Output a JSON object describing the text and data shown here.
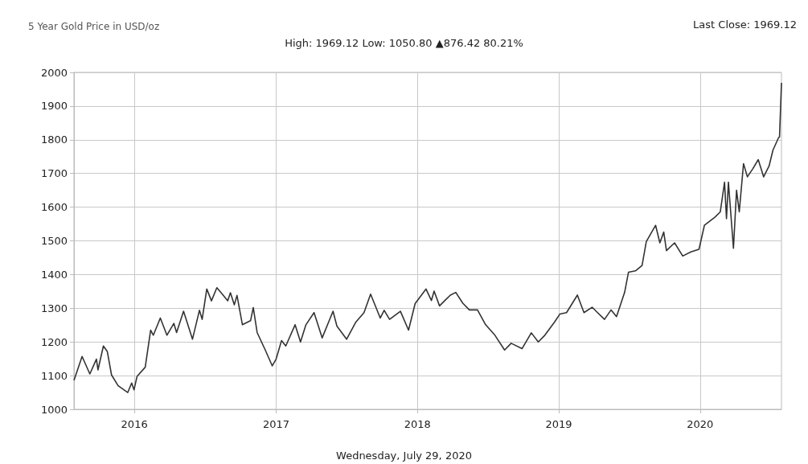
{
  "chart_data": {
    "type": "line",
    "title": "5 Year Gold Price in USD/oz",
    "subtitle": "High: 1969.12 Low: 1050.80 ▲876.42 80.21%",
    "annotations": [
      "Last Close: 1969.12",
      "Wednesday, July 29, 2020"
    ],
    "x": [
      "2015-07-29",
      "2015-08-19",
      "2015-09-08",
      "2015-09-25",
      "2015-09-29",
      "2015-10-13",
      "2015-10-23",
      "2015-11-03",
      "2015-11-20",
      "2015-12-15",
      "2015-12-25",
      "2015-12-31",
      "2016-01-08",
      "2016-01-29",
      "2016-02-12",
      "2016-02-19",
      "2016-03-08",
      "2016-03-25",
      "2016-04-12",
      "2016-04-19",
      "2016-05-07",
      "2016-05-30",
      "2016-06-17",
      "2016-06-24",
      "2016-07-06",
      "2016-07-18",
      "2016-08-01",
      "2016-08-15",
      "2016-08-29",
      "2016-09-05",
      "2016-09-15",
      "2016-09-22",
      "2016-10-06",
      "2016-10-27",
      "2016-11-03",
      "2016-11-13",
      "2016-12-04",
      "2016-12-22",
      "2017-01-01",
      "2017-01-15",
      "2017-01-26",
      "2017-02-19",
      "2017-03-05",
      "2017-03-19",
      "2017-04-09",
      "2017-04-30",
      "2017-05-28",
      "2017-06-07",
      "2017-07-02",
      "2017-07-26",
      "2017-08-16",
      "2017-09-02",
      "2017-09-27",
      "2017-10-07",
      "2017-10-21",
      "2017-11-18",
      "2017-12-09",
      "2017-12-26",
      "2018-01-23",
      "2018-02-06",
      "2018-02-13",
      "2018-02-27",
      "2018-03-13",
      "2018-03-27",
      "2018-04-10",
      "2018-04-28",
      "2018-05-15",
      "2018-06-05",
      "2018-06-26",
      "2018-07-20",
      "2018-08-14",
      "2018-08-31",
      "2018-09-28",
      "2018-10-22",
      "2018-11-09",
      "2018-11-26",
      "2018-12-21",
      "2019-01-04",
      "2019-01-21",
      "2019-02-18",
      "2019-03-07",
      "2019-03-28",
      "2019-04-11",
      "2019-04-29",
      "2019-05-16",
      "2019-05-30",
      "2019-06-20",
      "2019-06-30",
      "2019-07-18",
      "2019-08-04",
      "2019-08-15",
      "2019-09-08",
      "2019-09-19",
      "2019-09-29",
      "2019-10-06",
      "2019-10-27",
      "2019-11-17",
      "2019-12-08",
      "2019-12-29",
      "2020-01-12",
      "2020-02-08",
      "2020-02-22",
      "2020-03-04",
      "2020-03-09",
      "2020-03-14",
      "2020-03-27",
      "2020-04-04",
      "2020-04-11",
      "2020-04-22",
      "2020-05-02",
      "2020-05-16",
      "2020-05-30",
      "2020-06-13",
      "2020-06-27",
      "2020-07-07",
      "2020-07-21",
      "2020-07-24",
      "2020-07-29"
    ],
    "series": [
      {
        "color": "#333333",
        "values": [
          1086,
          1157,
          1105,
          1149,
          1117,
          1188,
          1172,
          1102,
          1070,
          1050,
          1078,
          1058,
          1098,
          1125,
          1235,
          1220,
          1271,
          1220,
          1255,
          1228,
          1291,
          1208,
          1294,
          1267,
          1357,
          1322,
          1361,
          1342,
          1322,
          1346,
          1310,
          1338,
          1251,
          1263,
          1302,
          1228,
          1176,
          1129,
          1149,
          1204,
          1188,
          1251,
          1200,
          1251,
          1287,
          1212,
          1291,
          1247,
          1208,
          1259,
          1287,
          1342,
          1271,
          1294,
          1267,
          1291,
          1235,
          1314,
          1357,
          1323,
          1351,
          1307,
          1323,
          1339,
          1347,
          1315,
          1295,
          1295,
          1251,
          1220,
          1176,
          1196,
          1180,
          1227,
          1200,
          1220,
          1259,
          1283,
          1287,
          1339,
          1287,
          1303,
          1287,
          1267,
          1295,
          1275,
          1347,
          1407,
          1411,
          1427,
          1498,
          1546,
          1494,
          1526,
          1471,
          1494,
          1455,
          1467,
          1475,
          1546,
          1570,
          1586,
          1674,
          1566,
          1674,
          1478,
          1650,
          1586,
          1729,
          1690,
          1714,
          1741,
          1690,
          1722,
          1769,
          1805,
          1809,
          1969
        ]
      }
    ],
    "xlim": [
      "2015-07-29",
      "2020-07-29"
    ],
    "xticks": [
      {
        "value": "2016-01-01",
        "label": "2016"
      },
      {
        "value": "2017-01-01",
        "label": "2017"
      },
      {
        "value": "2018-01-01",
        "label": "2018"
      },
      {
        "value": "2019-01-01",
        "label": "2019"
      },
      {
        "value": "2020-01-01",
        "label": "2020"
      }
    ],
    "ylim": [
      1000,
      2000
    ],
    "yticks": [
      1000,
      1100,
      1200,
      1300,
      1400,
      1500,
      1600,
      1700,
      1800,
      1900,
      2000
    ],
    "grid": true,
    "marker": "none",
    "line_style": "solid"
  }
}
